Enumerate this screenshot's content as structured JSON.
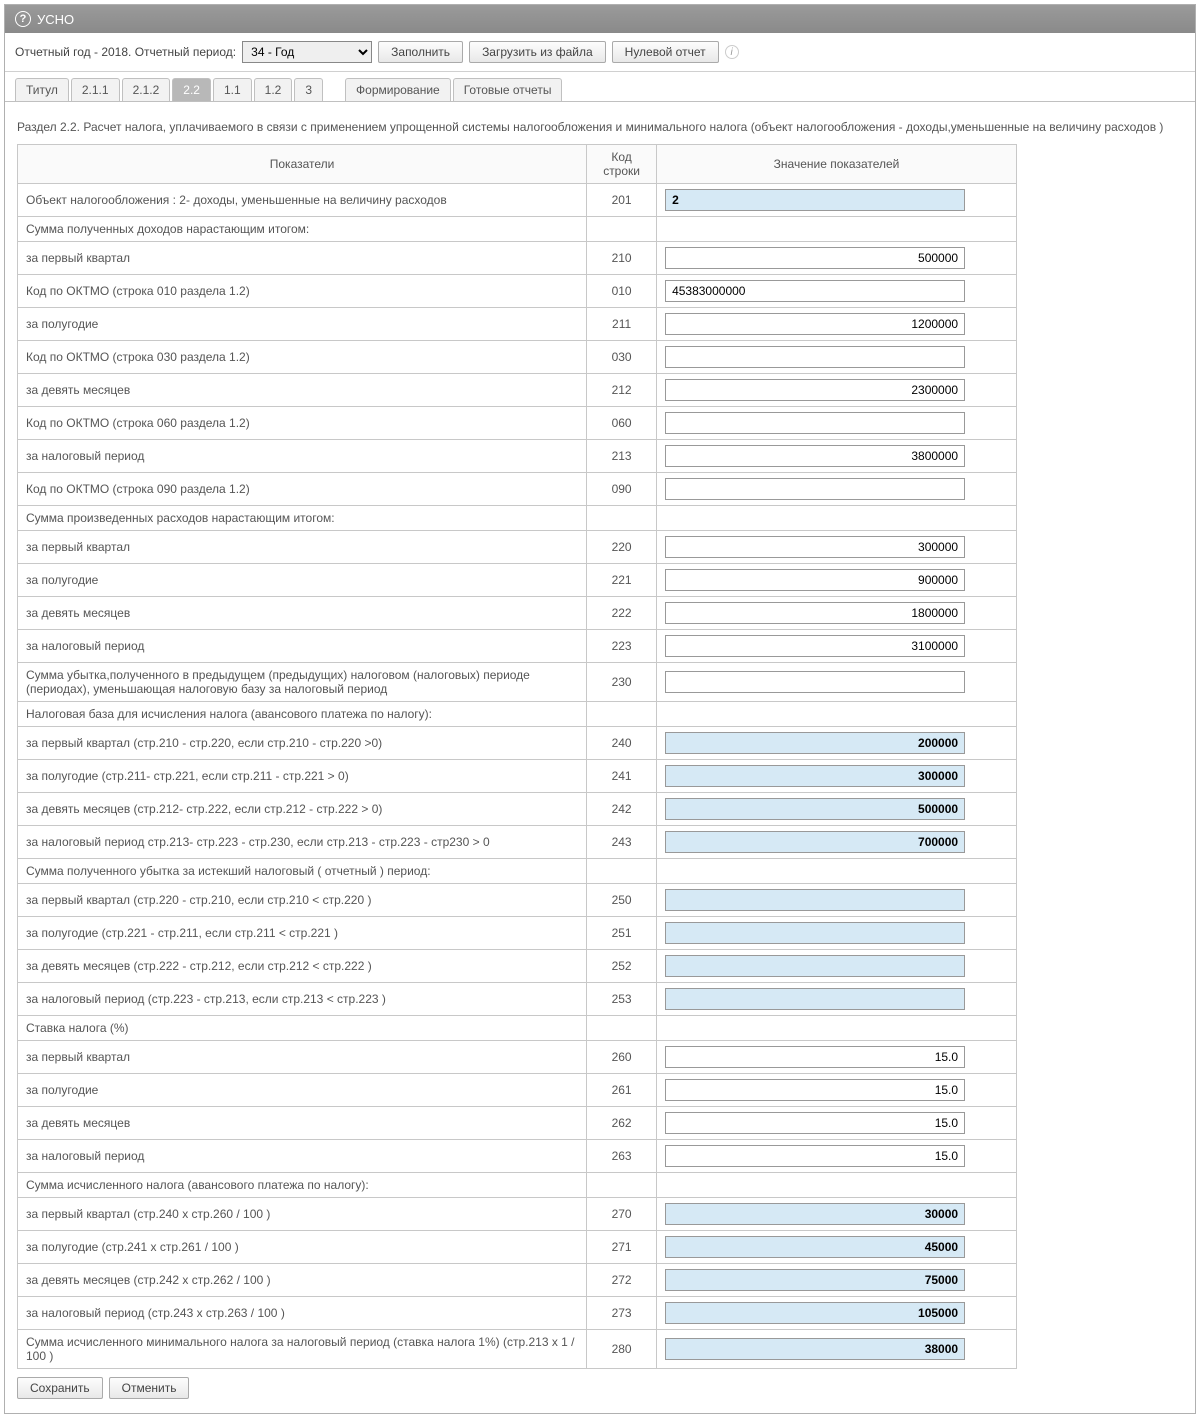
{
  "title": "УСНО",
  "toolbar": {
    "year_label": "Отчетный год - 2018.  Отчетный период:",
    "period_value": "34 - Год",
    "fill": "Заполнить",
    "load": "Загрузить из файла",
    "zero": "Нулевой отчет"
  },
  "tabs": [
    "Титул",
    "2.1.1",
    "2.1.2",
    "2.2",
    "1.1",
    "1.2",
    "3",
    "Формирование",
    "Готовые отчеты"
  ],
  "active_tab": 3,
  "section_title": "Раздел 2.2. Расчет налога, уплачиваемого в связи с применением упрощенной системы налогообложения и минимального налога (объект налогообложения - доходы,уменьшенные на величину расходов )",
  "table": {
    "head": {
      "label": "Показатели",
      "code": "Код строки",
      "value": "Значение показателей"
    },
    "rows": [
      {
        "label": "Объект налогообложения : 2- доходы, уменьшенные на величину расходов",
        "code": "201",
        "value": "2",
        "blue": true,
        "bold": true,
        "align": "left"
      },
      {
        "label": "Сумма полученных доходов нарастающим итогом:",
        "header": true
      },
      {
        "label": "за первый квартал",
        "code": "210",
        "value": "500000",
        "align": "right"
      },
      {
        "label": "Код по ОКТМО (строка 010 раздела 1.2)",
        "code": "010",
        "value": "45383000000",
        "align": "left"
      },
      {
        "label": "за полугодие",
        "code": "211",
        "value": "1200000",
        "align": "right"
      },
      {
        "label": "Код по ОКТМО (строка 030 раздела 1.2)",
        "code": "030",
        "value": "",
        "align": "left"
      },
      {
        "label": "за девять месяцев",
        "code": "212",
        "value": "2300000",
        "align": "right"
      },
      {
        "label": "Код по ОКТМО (строка 060 раздела 1.2)",
        "code": "060",
        "value": "",
        "align": "left"
      },
      {
        "label": "за налоговый период",
        "code": "213",
        "value": "3800000",
        "align": "right"
      },
      {
        "label": "Код по ОКТМО (строка 090 раздела 1.2)",
        "code": "090",
        "value": "",
        "align": "left"
      },
      {
        "label": "Сумма произведенных расходов нарастающим итогом:",
        "header": true
      },
      {
        "label": "за первый квартал",
        "code": "220",
        "value": "300000",
        "align": "right"
      },
      {
        "label": "за полугодие",
        "code": "221",
        "value": "900000",
        "align": "right"
      },
      {
        "label": "за девять месяцев",
        "code": "222",
        "value": "1800000",
        "align": "right"
      },
      {
        "label": "за налоговый период",
        "code": "223",
        "value": "3100000",
        "align": "right"
      },
      {
        "label": "Сумма убытка,полученного в предыдущем (предыдущих) налоговом (налоговых) периоде (периодах), уменьшающая налоговую базу за налоговый период",
        "code": "230",
        "value": "",
        "align": "right"
      },
      {
        "label": "Налоговая база для исчисления налога (авансового платежа по налогу):",
        "header": true
      },
      {
        "label": "за первый квартал (стр.210 - стр.220, если стр.210 - стр.220 >0)",
        "code": "240",
        "value": "200000",
        "blue": true,
        "bold": true,
        "align": "right"
      },
      {
        "label": "за полугодие (стр.211- стр.221, если стр.211 - стр.221 > 0)",
        "code": "241",
        "value": "300000",
        "blue": true,
        "bold": true,
        "align": "right"
      },
      {
        "label": "за девять месяцев (стр.212- стр.222, если стр.212 - стр.222 > 0)",
        "code": "242",
        "value": "500000",
        "blue": true,
        "bold": true,
        "align": "right"
      },
      {
        "label": "за налоговый период стр.213- стр.223 - стр.230, если стр.213 - стр.223 - стр230 > 0",
        "code": "243",
        "value": "700000",
        "blue": true,
        "bold": true,
        "align": "right"
      },
      {
        "label": "Сумма полученного убытка за истекший налоговый ( отчетный ) период:",
        "header": true
      },
      {
        "label": "за первый квартал (стр.220 - стр.210, если стр.210 < стр.220 )",
        "code": "250",
        "value": "",
        "blue": true,
        "align": "right"
      },
      {
        "label": "за полугодие (стр.221 - стр.211, если стр.211 < стр.221 )",
        "code": "251",
        "value": "",
        "blue": true,
        "align": "right"
      },
      {
        "label": "за девять месяцев (стр.222 - стр.212, если стр.212 < стр.222 )",
        "code": "252",
        "value": "",
        "blue": true,
        "align": "right"
      },
      {
        "label": "за налоговый период (стр.223 - стр.213, если стр.213 < стр.223 )",
        "code": "253",
        "value": "",
        "blue": true,
        "align": "right"
      },
      {
        "label": "Ставка налога (%)",
        "header": true
      },
      {
        "label": "за первый квартал",
        "code": "260",
        "value": "15.0",
        "align": "right"
      },
      {
        "label": "за полугодие",
        "code": "261",
        "value": "15.0",
        "align": "right"
      },
      {
        "label": "за девять месяцев",
        "code": "262",
        "value": "15.0",
        "align": "right"
      },
      {
        "label": "за налоговый период",
        "code": "263",
        "value": "15.0",
        "align": "right"
      },
      {
        "label": "Сумма исчисленного налога (авансового платежа по налогу):",
        "header": true
      },
      {
        "label": "за первый квартал (стр.240 х стр.260 / 100 )",
        "code": "270",
        "value": "30000",
        "blue": true,
        "bold": true,
        "align": "right"
      },
      {
        "label": "за полугодие (стр.241 х стр.261 / 100 )",
        "code": "271",
        "value": "45000",
        "blue": true,
        "bold": true,
        "align": "right"
      },
      {
        "label": "за девять месяцев (стр.242 х стр.262 / 100 )",
        "code": "272",
        "value": "75000",
        "blue": true,
        "bold": true,
        "align": "right"
      },
      {
        "label": "за налоговый период (стр.243 х стр.263 / 100 )",
        "code": "273",
        "value": "105000",
        "blue": true,
        "bold": true,
        "align": "right"
      },
      {
        "label": "Сумма исчисленного минимального налога за налоговый период (ставка налога 1%) (стр.213 х 1 / 100 )",
        "code": "280",
        "value": "38000",
        "blue": true,
        "bold": true,
        "align": "right"
      }
    ]
  },
  "footer": {
    "save": "Сохранить",
    "cancel": "Отменить"
  }
}
